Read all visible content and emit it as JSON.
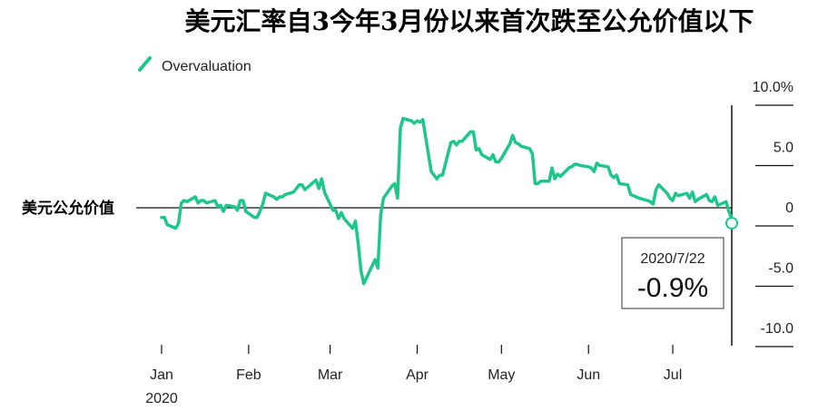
{
  "chart_data": {
    "type": "line",
    "title": "美元汇率自3今年3月份以来首次跌至公允价值以下",
    "series": [
      {
        "name": "Overvaluation",
        "color": "#1ec789",
        "points": [
          [
            "2020-01-01",
            -0.8
          ],
          [
            "2020-01-02",
            -0.8
          ],
          [
            "2020-01-03",
            -1.4
          ],
          [
            "2020-01-06",
            -1.7
          ],
          [
            "2020-01-07",
            -1.3
          ],
          [
            "2020-01-08",
            0.4
          ],
          [
            "2020-01-09",
            0.6
          ],
          [
            "2020-01-10",
            0.5
          ],
          [
            "2020-01-13",
            0.9
          ],
          [
            "2020-01-14",
            0.4
          ],
          [
            "2020-01-15",
            0.6
          ],
          [
            "2020-01-16",
            0.6
          ],
          [
            "2020-01-17",
            0.4
          ],
          [
            "2020-01-20",
            0.6
          ],
          [
            "2020-01-21",
            0.1
          ],
          [
            "2020-01-22",
            0.2
          ],
          [
            "2020-01-23",
            -0.3
          ],
          [
            "2020-01-24",
            0.2
          ],
          [
            "2020-01-27",
            0.1
          ],
          [
            "2020-01-28",
            -0.2
          ],
          [
            "2020-01-29",
            0.6
          ],
          [
            "2020-01-30",
            0.6
          ],
          [
            "2020-01-31",
            -0.3
          ],
          [
            "2020-02-03",
            -0.8
          ],
          [
            "2020-02-04",
            -0.8
          ],
          [
            "2020-02-05",
            -0.3
          ],
          [
            "2020-02-06",
            0.3
          ],
          [
            "2020-02-07",
            1.2
          ],
          [
            "2020-02-10",
            0.9
          ],
          [
            "2020-02-11",
            0.7
          ],
          [
            "2020-02-12",
            0.9
          ],
          [
            "2020-02-13",
            0.9
          ],
          [
            "2020-02-14",
            1.1
          ],
          [
            "2020-02-17",
            1.3
          ],
          [
            "2020-02-18",
            1.6
          ],
          [
            "2020-02-19",
            1.9
          ],
          [
            "2020-02-20",
            1.9
          ],
          [
            "2020-02-21",
            1.5
          ],
          [
            "2020-02-24",
            2.1
          ],
          [
            "2020-02-25",
            2.3
          ],
          [
            "2020-02-26",
            1.6
          ],
          [
            "2020-02-27",
            2.4
          ],
          [
            "2020-02-28",
            1.3
          ],
          [
            "2020-03-02",
            -0.2
          ],
          [
            "2020-03-03",
            -0.2
          ],
          [
            "2020-03-04",
            -0.9
          ],
          [
            "2020-03-05",
            -0.4
          ],
          [
            "2020-03-06",
            -0.9
          ],
          [
            "2020-03-09",
            -1.7
          ],
          [
            "2020-03-10",
            -1.1
          ],
          [
            "2020-03-11",
            -3.0
          ],
          [
            "2020-03-12",
            -5.2
          ],
          [
            "2020-03-13",
            -6.3
          ],
          [
            "2020-03-16",
            -4.8
          ],
          [
            "2020-03-17",
            -4.3
          ],
          [
            "2020-03-18",
            -5.0
          ],
          [
            "2020-03-19",
            -0.6
          ],
          [
            "2020-03-20",
            0.8
          ],
          [
            "2020-03-23",
            1.8
          ],
          [
            "2020-03-24",
            2.0
          ],
          [
            "2020-03-25",
            0.8
          ],
          [
            "2020-03-26",
            6.6
          ],
          [
            "2020-03-27",
            7.4
          ],
          [
            "2020-03-30",
            7.2
          ],
          [
            "2020-03-31",
            7.0
          ],
          [
            "2020-04-01",
            7.2
          ],
          [
            "2020-04-02",
            7.1
          ],
          [
            "2020-04-03",
            7.3
          ],
          [
            "2020-04-06",
            3.0
          ],
          [
            "2020-04-07",
            2.7
          ],
          [
            "2020-04-08",
            2.4
          ],
          [
            "2020-04-09",
            2.7
          ],
          [
            "2020-04-10",
            2.7
          ],
          [
            "2020-04-13",
            5.4
          ],
          [
            "2020-04-14",
            5.5
          ],
          [
            "2020-04-15",
            5.2
          ],
          [
            "2020-04-16",
            5.5
          ],
          [
            "2020-04-17",
            5.5
          ],
          [
            "2020-04-20",
            6.3
          ],
          [
            "2020-04-21",
            6.3
          ],
          [
            "2020-04-22",
            4.8
          ],
          [
            "2020-04-23",
            4.9
          ],
          [
            "2020-04-24",
            4.4
          ],
          [
            "2020-04-27",
            4.0
          ],
          [
            "2020-04-28",
            4.4
          ],
          [
            "2020-04-29",
            3.8
          ],
          [
            "2020-04-30",
            3.8
          ],
          [
            "2020-05-01",
            4.1
          ],
          [
            "2020-05-04",
            5.3
          ],
          [
            "2020-05-05",
            6.0
          ],
          [
            "2020-05-06",
            5.4
          ],
          [
            "2020-05-07",
            5.3
          ],
          [
            "2020-05-08",
            5.1
          ],
          [
            "2020-05-11",
            4.9
          ],
          [
            "2020-05-12",
            4.5
          ],
          [
            "2020-05-13",
            2.0
          ],
          [
            "2020-05-14",
            2.0
          ],
          [
            "2020-05-15",
            2.2
          ],
          [
            "2020-05-18",
            2.2
          ],
          [
            "2020-05-19",
            3.3
          ],
          [
            "2020-05-20",
            2.4
          ],
          [
            "2020-05-21",
            2.8
          ],
          [
            "2020-05-22",
            2.6
          ],
          [
            "2020-05-25",
            3.3
          ],
          [
            "2020-05-26",
            3.4
          ],
          [
            "2020-05-27",
            3.6
          ],
          [
            "2020-05-28",
            3.6
          ],
          [
            "2020-05-29",
            3.5
          ],
          [
            "2020-06-01",
            3.4
          ],
          [
            "2020-06-02",
            3.3
          ],
          [
            "2020-06-03",
            3.0
          ],
          [
            "2020-06-04",
            3.7
          ],
          [
            "2020-06-05",
            3.5
          ],
          [
            "2020-06-08",
            3.4
          ],
          [
            "2020-06-09",
            2.7
          ],
          [
            "2020-06-10",
            2.5
          ],
          [
            "2020-06-11",
            2.7
          ],
          [
            "2020-06-12",
            2.0
          ],
          [
            "2020-06-15",
            1.9
          ],
          [
            "2020-06-16",
            1.1
          ],
          [
            "2020-06-17",
            1.0
          ],
          [
            "2020-06-18",
            0.9
          ],
          [
            "2020-06-19",
            0.8
          ],
          [
            "2020-06-22",
            0.6
          ],
          [
            "2020-06-23",
            0.5
          ],
          [
            "2020-06-24",
            0.3
          ],
          [
            "2020-06-25",
            1.5
          ],
          [
            "2020-06-26",
            1.9
          ],
          [
            "2020-06-29",
            1.2
          ],
          [
            "2020-06-30",
            0.8
          ],
          [
            "2020-07-01",
            0.6
          ],
          [
            "2020-07-02",
            1.2
          ],
          [
            "2020-07-03",
            1.0
          ],
          [
            "2020-07-06",
            1.2
          ],
          [
            "2020-07-07",
            0.8
          ],
          [
            "2020-07-08",
            1.3
          ],
          [
            "2020-07-09",
            0.5
          ],
          [
            "2020-07-10",
            0.7
          ],
          [
            "2020-07-13",
            1.1
          ],
          [
            "2020-07-14",
            0.6
          ],
          [
            "2020-07-15",
            0.5
          ],
          [
            "2020-07-16",
            0.9
          ],
          [
            "2020-07-17",
            0.2
          ],
          [
            "2020-07-20",
            0.5
          ],
          [
            "2020-07-21",
            -0.3
          ],
          [
            "2020-07-22",
            -0.9
          ]
        ]
      }
    ],
    "xlim": [
      "2020-01-01",
      "2020-07-22"
    ],
    "ylim": [
      -10,
      10
    ],
    "y_ticks": [
      {
        "value": 10,
        "label": "10.0%"
      },
      {
        "value": 5,
        "label": "5.0"
      },
      {
        "value": 0,
        "label": "0"
      },
      {
        "value": -5,
        "label": "-5.0"
      },
      {
        "value": -10,
        "label": "-10.0"
      }
    ],
    "x_ticks": [
      {
        "date": "2020-01-01",
        "label": "Jan"
      },
      {
        "date": "2020-02-01",
        "label": "Feb"
      },
      {
        "date": "2020-03-01",
        "label": "Mar"
      },
      {
        "date": "2020-04-01",
        "label": "Apr"
      },
      {
        "date": "2020-05-01",
        "label": "May"
      },
      {
        "date": "2020-06-01",
        "label": "Jun"
      },
      {
        "date": "2020-07-01",
        "label": "Jul"
      }
    ],
    "x_year_label": "2020",
    "reference_line": {
      "value": 0,
      "label": "美元公允价值"
    },
    "callout": {
      "date_label": "2020/7/22",
      "value_label": "-0.9%"
    },
    "legend_position": "top-left",
    "grid": false
  }
}
